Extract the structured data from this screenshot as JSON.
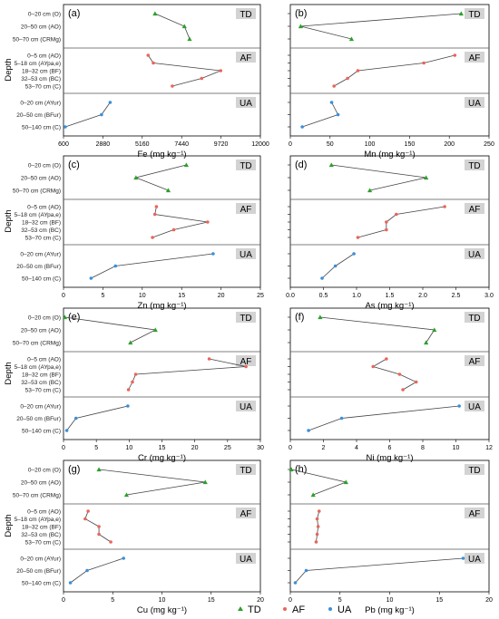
{
  "figure": {
    "depth_label": "Depth",
    "legend": [
      {
        "name": "TD",
        "symbol": "▲",
        "color": "#2ca02c"
      },
      {
        "name": "AF",
        "symbol": "•",
        "color": "#e8665a"
      },
      {
        "name": "UA",
        "symbol": "•",
        "color": "#3b8fd9"
      }
    ],
    "group_colors": {
      "TD": "#2ca02c",
      "AF": "#e8665a",
      "UA": "#3b8fd9"
    },
    "band_label_bg": "#d3d3d3",
    "group_ylabels": {
      "TD": [
        "0–20 cm (O)",
        "20–50 cm (AO)",
        "50–70 cm (CRMg)"
      ],
      "AF": [
        "0–5 cm (AO)",
        "5–18 cm (AYpa,e)",
        "18–32 cm (BF)",
        "32–53 cm (BC)",
        "53–70 cm (C)"
      ],
      "UA": [
        "0–20 cm (AYur)",
        "20–50 cm (BFur)",
        "50–140 cm (C)"
      ]
    }
  },
  "chart_data": [
    {
      "type": "line",
      "panel": "(a)",
      "xlabel": "Fe (mg kg⁻¹)",
      "xlim": [
        600,
        12000
      ],
      "xticks": [
        "600",
        "2880",
        "5160",
        "7440",
        "9720",
        "12000"
      ],
      "groups": {
        "TD": [
          5900,
          7600,
          7900
        ],
        "AF": [
          5500,
          5800,
          9700,
          8600,
          6900
        ],
        "UA": [
          3300,
          2800,
          700
        ]
      }
    },
    {
      "type": "line",
      "panel": "(b)",
      "xlabel": "Mn (mg kg⁻¹)",
      "xlim": [
        0,
        250
      ],
      "xticks": [
        "0",
        "50",
        "100",
        "150",
        "200",
        "250"
      ],
      "groups": {
        "TD": [
          215,
          13,
          77
        ],
        "AF": [
          207,
          168,
          85,
          72,
          55
        ],
        "UA": [
          52,
          60,
          15
        ]
      }
    },
    {
      "type": "line",
      "panel": "(c)",
      "xlabel": "Zn (mg kg⁻¹)",
      "xlim": [
        0,
        25
      ],
      "xticks": [
        "0",
        "5",
        "10",
        "15",
        "20",
        "25"
      ],
      "groups": {
        "TD": [
          15.6,
          9.2,
          13.3
        ],
        "AF": [
          11.8,
          11.6,
          18.3,
          14.0,
          11.3
        ],
        "UA": [
          19.0,
          6.6,
          3.5
        ]
      }
    },
    {
      "type": "line",
      "panel": "(d)",
      "xlabel": "As (mg kg⁻¹)",
      "xlim": [
        0,
        3
      ],
      "xticks": [
        "0.0",
        "0.5",
        "1.0",
        "1.5",
        "2.0",
        "2.5",
        "3.0"
      ],
      "groups": {
        "TD": [
          0.62,
          2.05,
          1.2
        ],
        "AF": [
          2.33,
          1.6,
          1.45,
          1.45,
          1.02
        ],
        "UA": [
          0.96,
          0.68,
          0.48
        ]
      }
    },
    {
      "type": "line",
      "panel": "(e)",
      "xlabel": "Cr (mg kg⁻¹)",
      "xlim": [
        0,
        30
      ],
      "xticks": [
        "0",
        "5",
        "10",
        "15",
        "20",
        "25",
        "30"
      ],
      "groups": {
        "TD": [
          0.2,
          14.0,
          10.2
        ],
        "AF": [
          22.2,
          27.8,
          11.0,
          10.5,
          9.9
        ],
        "UA": [
          9.8,
          1.9,
          0.5
        ]
      }
    },
    {
      "type": "line",
      "panel": "(f)",
      "xlabel": "Ni (mg kg⁻¹)",
      "xlim": [
        0,
        12
      ],
      "xticks": [
        "0",
        "2",
        "4",
        "6",
        "8",
        "10",
        "12"
      ],
      "groups": {
        "TD": [
          1.8,
          8.7,
          8.2
        ],
        "AF": [
          5.8,
          5.0,
          6.6,
          7.6,
          6.8
        ],
        "UA": [
          10.2,
          3.1,
          1.1
        ]
      }
    },
    {
      "type": "line",
      "panel": "(g)",
      "xlabel": "Cu (mg kg⁻¹)",
      "xlim": [
        0,
        20
      ],
      "xticks": [
        "0",
        "5",
        "10",
        "15",
        "20"
      ],
      "groups": {
        "TD": [
          3.6,
          14.4,
          6.4
        ],
        "AF": [
          2.5,
          2.2,
          3.6,
          3.6,
          4.8
        ],
        "UA": [
          6.1,
          2.4,
          0.7
        ]
      }
    },
    {
      "type": "line",
      "panel": "(h)",
      "xlabel": "Pb (mg kg⁻¹)",
      "xlim": [
        0,
        20
      ],
      "xticks": [
        "0",
        "5",
        "10",
        "15",
        "20"
      ],
      "groups": {
        "TD": [
          0.1,
          5.6,
          2.3
        ],
        "AF": [
          2.9,
          2.7,
          2.8,
          2.7,
          2.6
        ],
        "UA": [
          17.4,
          1.6,
          0.5
        ]
      }
    }
  ]
}
